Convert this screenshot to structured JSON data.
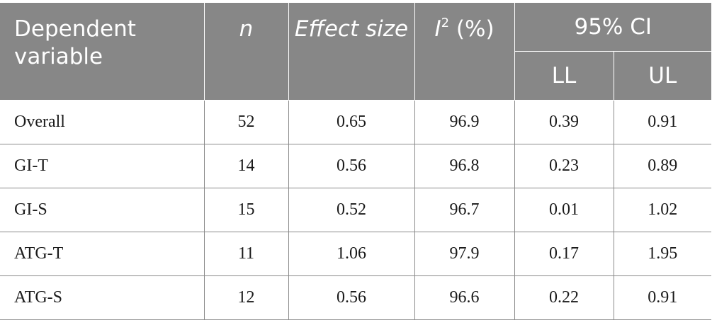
{
  "header": {
    "dependent_variable": "Dependent variable",
    "n": "n",
    "effect_size": "Effect size",
    "i2_base": "I",
    "i2_sup": "2",
    "i2_unit": " (%)",
    "ci": "95% CI",
    "ll": "LL",
    "ul": "UL"
  },
  "rows": [
    {
      "variable": "Overall",
      "n": "52",
      "effect_size": "0.65",
      "i2": "96.9",
      "ll": "0.39",
      "ul": "0.91"
    },
    {
      "variable": "GI-T",
      "n": "14",
      "effect_size": "0.56",
      "i2": "96.8",
      "ll": "0.23",
      "ul": "0.89"
    },
    {
      "variable": "GI-S",
      "n": "15",
      "effect_size": "0.52",
      "i2": "96.7",
      "ll": "0.01",
      "ul": "1.02"
    },
    {
      "variable": "ATG-T",
      "n": "11",
      "effect_size": "1.06",
      "i2": "97.9",
      "ll": "0.17",
      "ul": "1.95"
    },
    {
      "variable": "ATG-S",
      "n": "12",
      "effect_size": "0.56",
      "i2": "96.6",
      "ll": "0.22",
      "ul": "0.91"
    }
  ],
  "colors": {
    "header_bg": "#878787",
    "header_text": "#ffffff",
    "grid": "#8a8a8a"
  }
}
